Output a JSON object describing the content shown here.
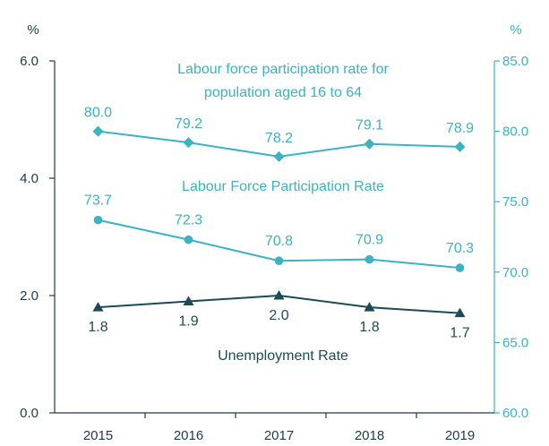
{
  "colors": {
    "left_axis": "#1d3c47",
    "right_axis": "#3ab3c4",
    "series_cyan": "#3ab3c4",
    "series_dark": "#1d4a57"
  },
  "chart_data": {
    "type": "line",
    "title": "",
    "xlabel": "",
    "categories": [
      "2015",
      "2016",
      "2017",
      "2018",
      "2019"
    ],
    "y_left": {
      "unit": "%",
      "ylim": [
        0,
        6
      ],
      "ticks": [
        "0.0",
        "2.0",
        "4.0",
        "6.0"
      ]
    },
    "y_right": {
      "unit": "%",
      "ylim": [
        60,
        85
      ],
      "ticks": [
        "60.0",
        "65.0",
        "70.0",
        "75.0",
        "80.0",
        "85.0"
      ]
    },
    "grid": false,
    "legend": "none",
    "series": [
      {
        "name": "Labour force participation rate for population aged 16 to 64",
        "name_lines": [
          "Labour force participation rate for",
          "population aged 16 to 64"
        ],
        "axis": "right",
        "marker": "diamond",
        "color": "#3ab3c4",
        "values": [
          80.0,
          79.2,
          78.2,
          79.1,
          78.9
        ],
        "labels": [
          "80.0",
          "79.2",
          "78.2",
          "79.1",
          "78.9"
        ]
      },
      {
        "name": "Labour Force Participation Rate",
        "name_lines": [
          "Labour Force Participation Rate"
        ],
        "axis": "right",
        "marker": "circle",
        "color": "#3ab3c4",
        "values": [
          73.7,
          72.3,
          70.8,
          70.9,
          70.3
        ],
        "labels": [
          "73.7",
          "72.3",
          "70.8",
          "70.9",
          "70.3"
        ]
      },
      {
        "name": "Unemployment Rate",
        "name_lines": [
          "Unemployment Rate"
        ],
        "axis": "left",
        "marker": "triangle",
        "color": "#1d4a57",
        "values": [
          1.8,
          1.9,
          2.0,
          1.8,
          1.7
        ],
        "labels": [
          "1.8",
          "1.9",
          "2.0",
          "1.8",
          "1.7"
        ]
      }
    ]
  }
}
